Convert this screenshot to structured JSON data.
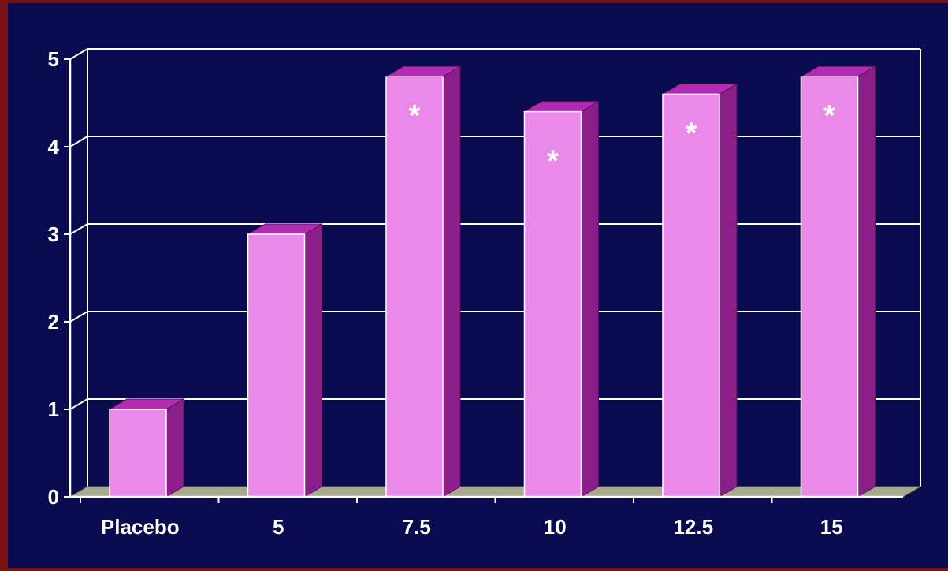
{
  "chart_data": {
    "type": "bar",
    "categories": [
      "Placebo",
      "5",
      "7.5",
      "10",
      "12.5",
      "15"
    ],
    "values": [
      1.0,
      3.0,
      4.8,
      4.4,
      4.6,
      4.8
    ],
    "annotations": [
      "",
      "",
      "*",
      "*",
      "*",
      "*"
    ],
    "title": "",
    "xlabel": "",
    "ylabel": "",
    "ylim": [
      0,
      5
    ],
    "yticks": [
      "0",
      "1",
      "2",
      "3",
      "4",
      "5"
    ],
    "grid": true,
    "style": "3d",
    "colors": {
      "background": "#0a0a4e",
      "frame": "#7a1010",
      "bar_front": "#e98ae9",
      "bar_top": "#b32bb3",
      "bar_side": "#8a1f8a",
      "floor": "#a8a88e",
      "gridline": "#ffffff",
      "text": "#ffffff"
    }
  }
}
